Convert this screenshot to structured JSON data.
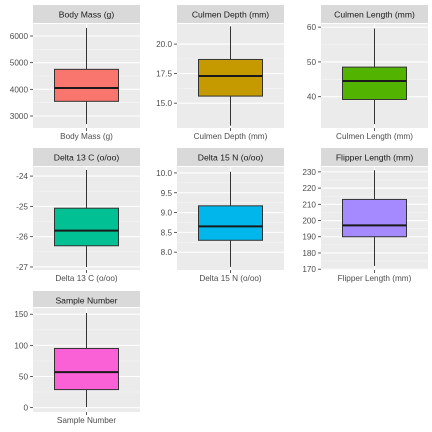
{
  "chart_data": [
    {
      "type": "box",
      "title": "Body Mass (g)",
      "categories": [
        "Body Mass (g)"
      ],
      "ylim": [
        2550,
        6450
      ],
      "yticks": [
        3000,
        4000,
        5000,
        6000
      ],
      "color": "#F8766D",
      "box": {
        "min": 2700,
        "q1": 3550,
        "median": 4050,
        "q3": 4750,
        "max": 6300
      }
    },
    {
      "type": "box",
      "title": "Culmen Depth (mm)",
      "categories": [
        "Culmen Depth (mm)"
      ],
      "ylim": [
        12.9,
        21.7
      ],
      "yticks": [
        15.0,
        17.5,
        20.0
      ],
      "tick_labels": [
        "15.0",
        "17.5",
        "20.0"
      ],
      "color": "#C49A00",
      "box": {
        "min": 13.1,
        "q1": 15.6,
        "median": 17.3,
        "q3": 18.7,
        "max": 21.5
      }
    },
    {
      "type": "box",
      "title": "Culmen Length (mm)",
      "categories": [
        "Culmen Length (mm)"
      ],
      "ylim": [
        31.0,
        60.9
      ],
      "yticks": [
        40,
        50,
        60
      ],
      "color": "#53B400",
      "box": {
        "min": 32.1,
        "q1": 39.2,
        "median": 44.5,
        "q3": 48.5,
        "max": 59.6
      }
    },
    {
      "type": "box",
      "title": "Delta 13 C (o/oo)",
      "categories": [
        "Delta 13 C (o/oo)"
      ],
      "ylim": [
        -27.1,
        -23.7
      ],
      "yticks": [
        -27,
        -26,
        -25,
        -24
      ],
      "color": "#00C094",
      "box": {
        "min": -27.0,
        "q1": -26.3,
        "median": -25.8,
        "q3": -25.06,
        "max": -23.8
      }
    },
    {
      "type": "box",
      "title": "Delta 15 N (o/oo)",
      "categories": [
        "Delta 15 N (o/oo)"
      ],
      "ylim": [
        7.55,
        10.15
      ],
      "yticks": [
        8.0,
        8.5,
        9.0,
        9.5,
        10.0
      ],
      "tick_labels": [
        "8.0",
        "8.5",
        "9.0",
        "9.5",
        "10.0"
      ],
      "color": "#00B6EB",
      "box": {
        "min": 7.63,
        "q1": 8.3,
        "median": 8.65,
        "q3": 9.17,
        "max": 10.03
      }
    },
    {
      "type": "box",
      "title": "Flipper Length (mm)",
      "categories": [
        "Flipper Length (mm)"
      ],
      "ylim": [
        169.5,
        233.0
      ],
      "yticks": [
        170,
        180,
        190,
        200,
        210,
        220,
        230
      ],
      "color": "#A58AFF",
      "box": {
        "min": 172,
        "q1": 190,
        "median": 197,
        "q3": 213,
        "max": 231
      }
    },
    {
      "type": "box",
      "title": "Sample Number",
      "categories": [
        "Sample Number"
      ],
      "ylim": [
        -7,
        160
      ],
      "yticks": [
        0,
        50,
        100,
        150
      ],
      "color": "#FB61D7",
      "box": {
        "min": 1,
        "q1": 29,
        "median": 57,
        "q3": 95,
        "max": 152
      }
    }
  ]
}
